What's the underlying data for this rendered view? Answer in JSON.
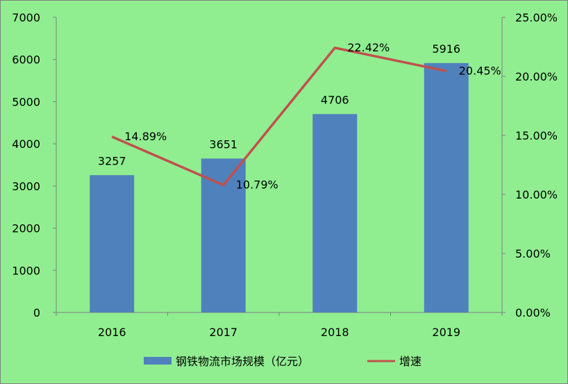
{
  "chart_data": {
    "type": "bar",
    "categories": [
      "2016",
      "2017",
      "2018",
      "2019"
    ],
    "series": [
      {
        "name": "钢铁物流市场规模（亿元）",
        "type": "bar",
        "axis": "left",
        "values": [
          3257,
          3651,
          4706,
          5916
        ],
        "labels": [
          "3257",
          "3651",
          "4706",
          "5916"
        ],
        "color": "#4f81bd"
      },
      {
        "name": "增速",
        "type": "line",
        "axis": "right",
        "values": [
          14.89,
          10.79,
          22.42,
          20.45
        ],
        "labels": [
          "14.89%",
          "10.79%",
          "22.42%",
          "20.45%"
        ],
        "color": "#c0504d"
      }
    ],
    "y_left": {
      "range": [
        0,
        7000
      ],
      "ticks": [
        "0",
        "1000",
        "2000",
        "3000",
        "4000",
        "5000",
        "6000",
        "7000"
      ]
    },
    "y_right": {
      "range": [
        0,
        25
      ],
      "ticks": [
        "0.00%",
        "5.00%",
        "10.00%",
        "15.00%",
        "20.00%",
        "25.00%"
      ]
    },
    "grid": false,
    "legend_position": "bottom",
    "background": "#90ee90"
  }
}
